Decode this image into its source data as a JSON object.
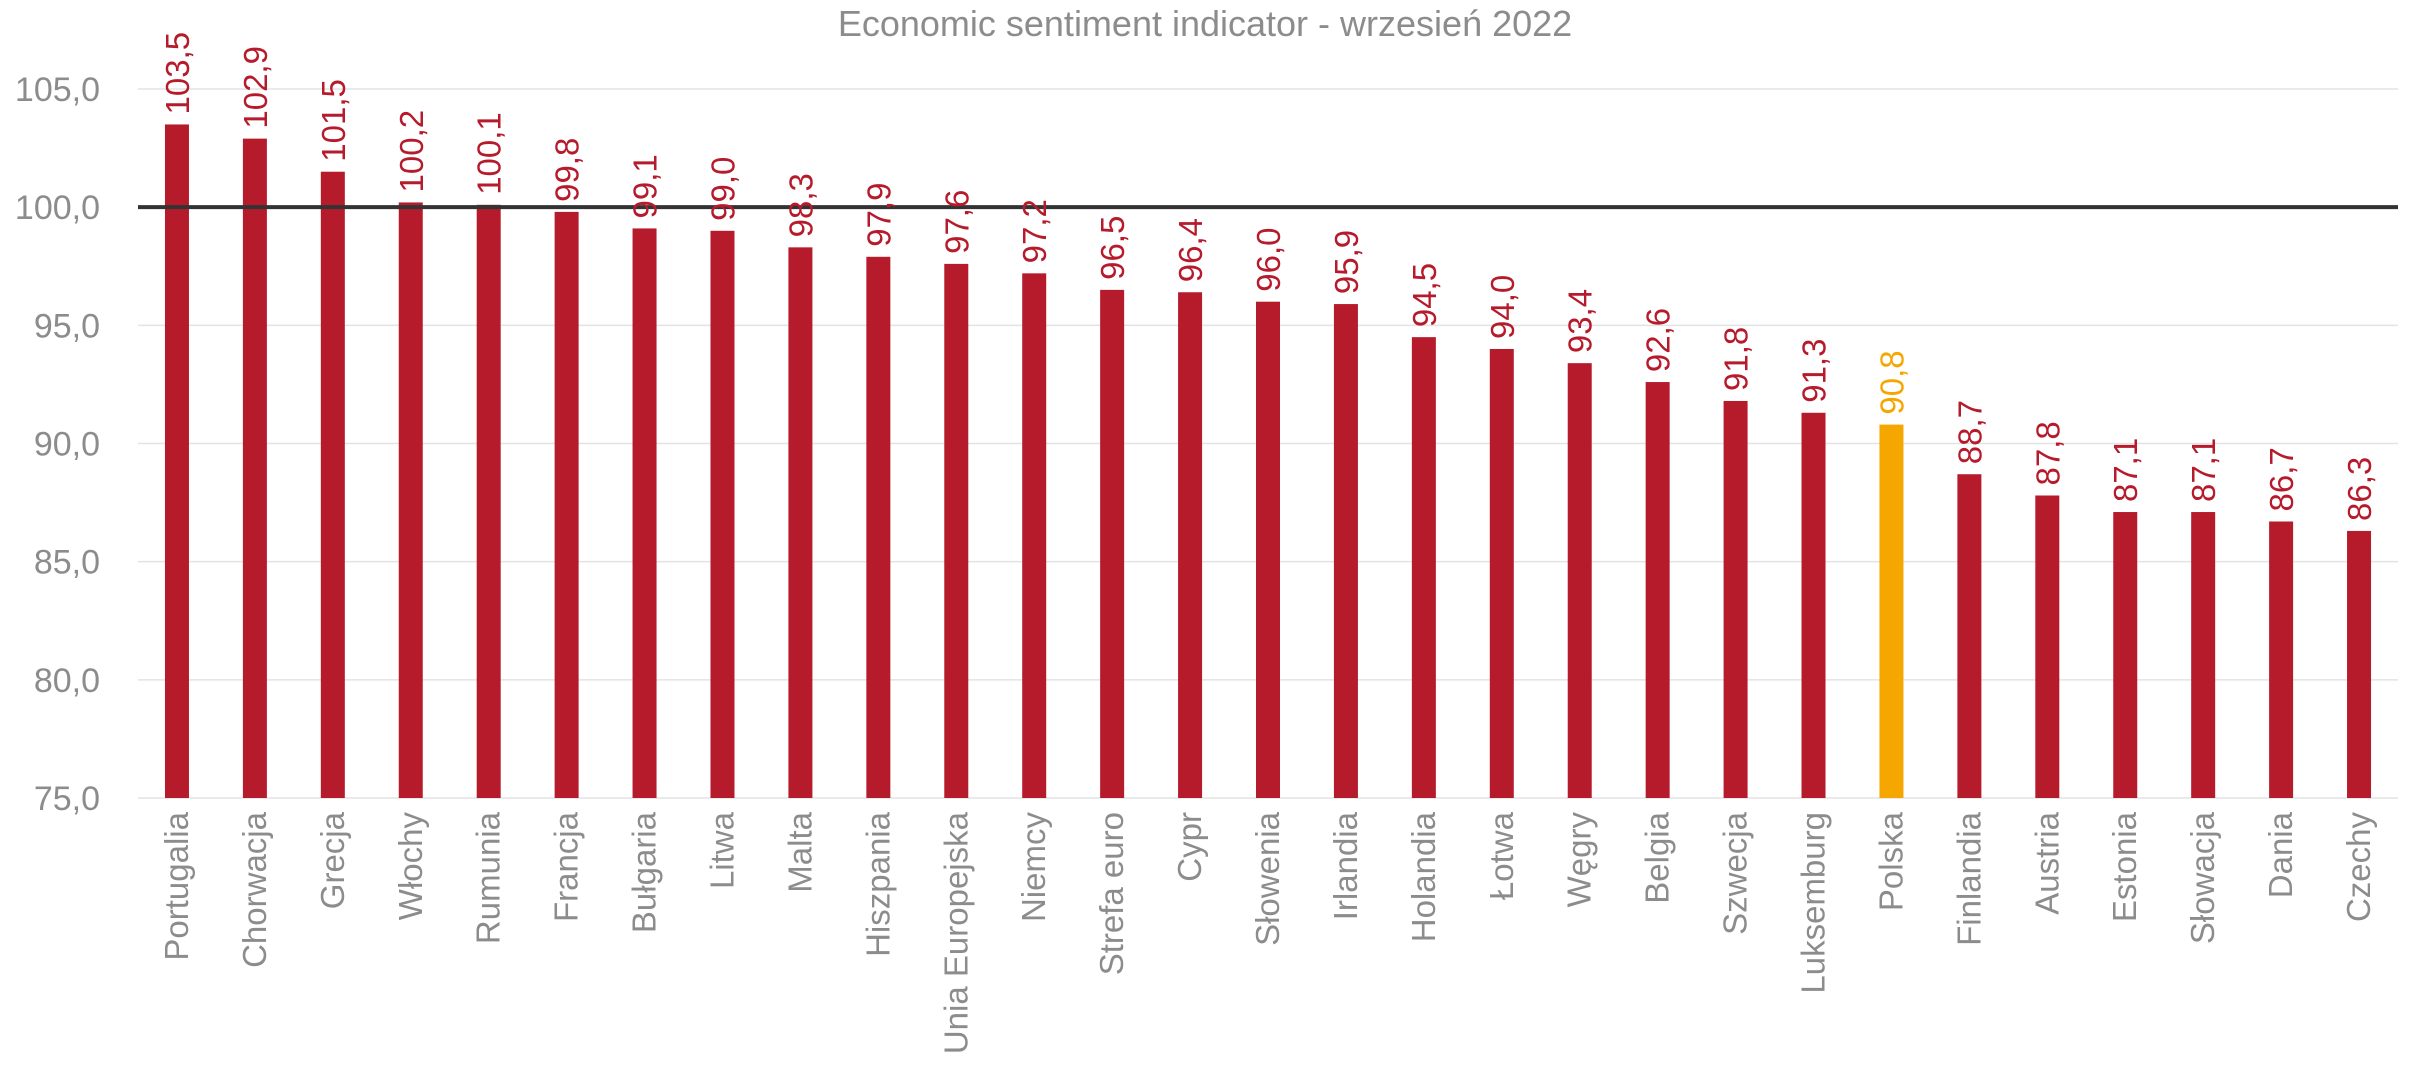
{
  "chart_data": {
    "type": "bar",
    "title": "Economic sentiment indicator - wrzesień 2022",
    "xlabel": "",
    "ylabel": "",
    "ylim": [
      75,
      105
    ],
    "yticks": [
      75,
      80,
      85,
      90,
      95,
      100,
      105
    ],
    "ytick_labels": [
      "75,0",
      "80,0",
      "85,0",
      "90,0",
      "95,0",
      "100,0",
      "105,0"
    ],
    "grid": true,
    "reference_line": 100,
    "categories": [
      "Portugalia",
      "Chorwacja",
      "Grecja",
      "Włochy",
      "Rumunia",
      "Francja",
      "Bułgaria",
      "Litwa",
      "Malta",
      "Hiszpania",
      "Unia Europejska",
      "Niemcy",
      "Strefa euro",
      "Cypr",
      "Słowenia",
      "Irlandia",
      "Holandia",
      "Łotwa",
      "Węgry",
      "Belgia",
      "Szwecja",
      "Luksemburg",
      "Polska",
      "Finlandia",
      "Austria",
      "Estonia",
      "Słowacja",
      "Dania",
      "Czechy"
    ],
    "values": [
      103.5,
      102.9,
      101.5,
      100.2,
      100.1,
      99.8,
      99.1,
      99.0,
      98.3,
      97.9,
      97.6,
      97.2,
      96.5,
      96.4,
      96.0,
      95.9,
      94.5,
      94.0,
      93.4,
      92.6,
      91.8,
      91.3,
      90.8,
      88.7,
      87.8,
      87.1,
      87.1,
      86.7,
      86.3
    ],
    "value_labels": [
      "103,5",
      "102,9",
      "101,5",
      "100,2",
      "100,1",
      "99,8",
      "99,1",
      "99,0",
      "98,3",
      "97,9",
      "97,6",
      "97,2",
      "96,5",
      "96,4",
      "96,0",
      "95,9",
      "94,5",
      "94,0",
      "93,4",
      "92,6",
      "91,8",
      "91,3",
      "90,8",
      "88,7",
      "87,8",
      "87,1",
      "87,1",
      "86,7",
      "86,3"
    ],
    "highlight_category": "Polska",
    "colors": {
      "bar": "#b61b2c",
      "highlight": "#f5a700",
      "reference_line": "#333333",
      "grid": "#e3e3e3",
      "text": "#8c8c8c"
    }
  }
}
